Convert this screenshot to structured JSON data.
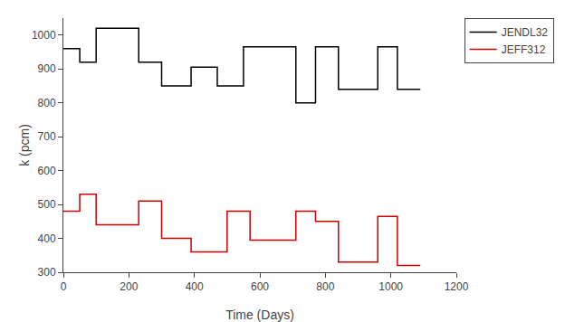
{
  "chart_data": {
    "type": "line",
    "xlabel": "Time (Days)",
    "ylabel": "k (pcm)",
    "xlim": [
      0,
      1200
    ],
    "ylim": [
      300,
      1050
    ],
    "xticks": [
      0,
      200,
      400,
      600,
      800,
      1000,
      1200
    ],
    "yticks": [
      300,
      400,
      500,
      600,
      700,
      800,
      900,
      1000
    ],
    "grid": false,
    "legend": "upper right",
    "series": [
      {
        "name": "JENDL32",
        "color": "#000000",
        "x": [
          0,
          50,
          50,
          100,
          100,
          230,
          230,
          300,
          300,
          390,
          390,
          470,
          470,
          550,
          550,
          710,
          710,
          770,
          770,
          840,
          840,
          960,
          960,
          1020,
          1020,
          1090
        ],
        "values": [
          960,
          960,
          920,
          920,
          1020,
          1020,
          920,
          920,
          850,
          850,
          905,
          905,
          850,
          850,
          965,
          965,
          800,
          800,
          965,
          965,
          840,
          840,
          965,
          965,
          840,
          840
        ]
      },
      {
        "name": "JEFF312",
        "color": "#cc0000",
        "x": [
          0,
          50,
          50,
          100,
          100,
          230,
          230,
          300,
          300,
          390,
          390,
          500,
          500,
          570,
          570,
          710,
          710,
          770,
          770,
          840,
          840,
          960,
          960,
          1020,
          1020,
          1090
        ],
        "values": [
          480,
          480,
          530,
          530,
          440,
          440,
          510,
          510,
          400,
          400,
          360,
          360,
          480,
          480,
          395,
          395,
          480,
          480,
          450,
          450,
          330,
          330,
          465,
          465,
          320,
          320
        ]
      }
    ]
  }
}
